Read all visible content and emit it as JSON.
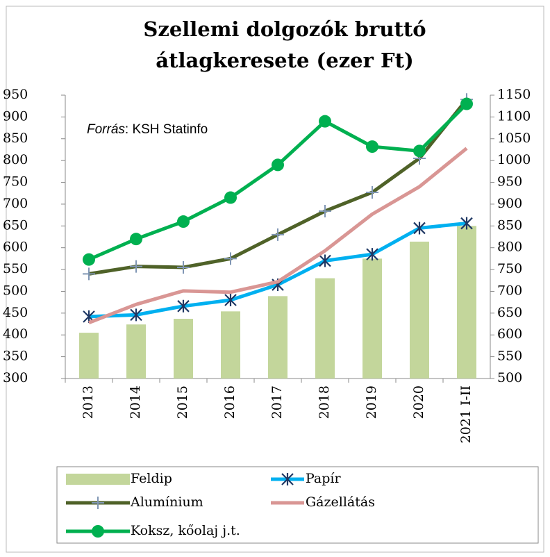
{
  "chart_data": {
    "type": "combo",
    "title": [
      "Szellemi dolgozók bruttó",
      "átlagkeresete (ezer Ft)"
    ],
    "annotation": [
      "Forrás",
      ": KSH Statinfo"
    ],
    "categories": [
      "2013",
      "2014",
      "2015",
      "2016",
      "2017",
      "2018",
      "2019",
      "2020",
      "2021 I-II"
    ],
    "ylim": [
      300,
      950
    ],
    "yticks": [
      300,
      350,
      400,
      450,
      500,
      550,
      600,
      650,
      700,
      750,
      800,
      850,
      900,
      950
    ],
    "y2lim": [
      500,
      1150
    ],
    "y2ticks": [
      500,
      550,
      600,
      650,
      700,
      750,
      800,
      850,
      900,
      950,
      1000,
      1050,
      1100,
      1150
    ],
    "series": [
      {
        "name": "Feldip",
        "type": "bar",
        "color": "#c3d69b",
        "values": [
          405,
          424,
          437,
          454,
          489,
          530,
          575,
          614,
          650
        ]
      },
      {
        "name": "Papír",
        "type": "line",
        "marker": "asterisk",
        "color": "#00b0f0",
        "values": [
          442,
          446,
          466,
          480,
          515,
          570,
          585,
          645,
          656
        ]
      },
      {
        "name": "Alumínium",
        "type": "line",
        "marker": "plus",
        "color": "#4f6228",
        "values": [
          540,
          557,
          555,
          575,
          630,
          684,
          727,
          805,
          940
        ]
      },
      {
        "name": "Gázellátás",
        "type": "line",
        "marker": "none",
        "color": "#d99694",
        "values": [
          428,
          470,
          501,
          498,
          522,
          593,
          677,
          740,
          828
        ]
      },
      {
        "name": "Koksz, kőolaj j.t.",
        "type": "line",
        "marker": "circle",
        "color": "#00b050",
        "axis": "y2",
        "values": [
          773,
          820,
          860,
          915,
          990,
          1090,
          1032,
          1022,
          1130
        ]
      }
    ]
  }
}
